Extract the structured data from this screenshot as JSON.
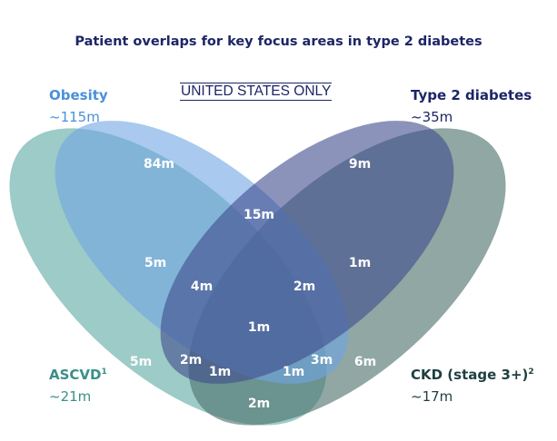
{
  "title": "Patient overlaps for key focus areas in type 2 diabetes",
  "note": "UNITED STATES ONLY",
  "sets": [
    {
      "name": "Obesity",
      "sup": "",
      "size": "~115m",
      "color": "#4a90d9"
    },
    {
      "name": "Type 2 diabetes",
      "sup": "",
      "size": "~35m",
      "color": "#1c2566"
    },
    {
      "name": "ASCVD",
      "sup": "1",
      "size": "~21m",
      "color": "#3a8f88"
    },
    {
      "name": "CKD (stage 3+)",
      "sup": "2",
      "size": "~17m",
      "color": "#1f3f3f"
    }
  ],
  "regions": [
    "84m",
    "9m",
    "15m",
    "5m",
    "1m",
    "4m",
    "2m",
    "1m",
    "5m",
    "2m",
    "1m",
    "1m",
    "3m",
    "6m",
    "2m"
  ]
}
